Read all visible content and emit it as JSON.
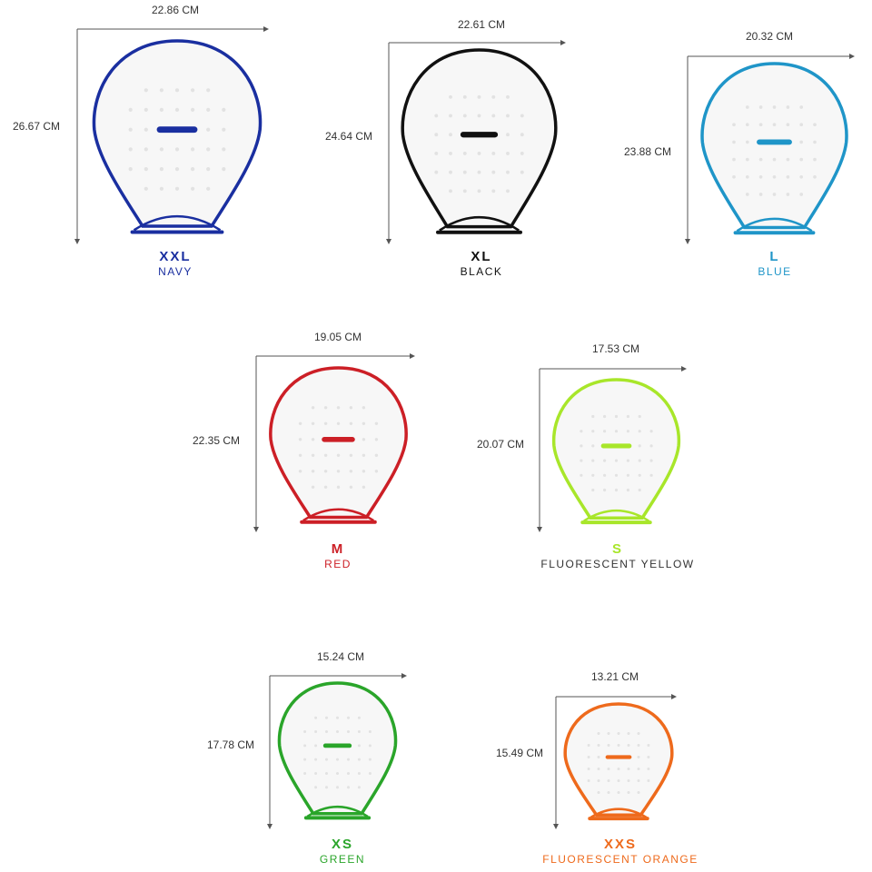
{
  "items": [
    {
      "width": "22.86 CM",
      "height": "26.67 CM",
      "size": "XXL",
      "color_name": "NAVY",
      "color": "#1a2fa0"
    },
    {
      "width": "22.61 CM",
      "height": "24.64 CM",
      "size": "XL",
      "color_name": "BLACK",
      "color": "#111111"
    },
    {
      "width": "20.32 CM",
      "height": "23.88 CM",
      "size": "L",
      "color_name": "BLUE",
      "color": "#1f95c8"
    },
    {
      "width": "19.05 CM",
      "height": "22.35 CM",
      "size": "M",
      "color_name": "RED",
      "color": "#cc1f26"
    },
    {
      "width": "17.53 CM",
      "height": "20.07 CM",
      "size": "S",
      "color_name": "FLUORESCENT YELLOW",
      "color": "#a8e62a"
    },
    {
      "width": "15.24 CM",
      "height": "17.78 CM",
      "size": "XS",
      "color_name": "GREEN",
      "color": "#2aa52a"
    },
    {
      "width": "13.21 CM",
      "height": "15.49 CM",
      "size": "XXS",
      "color_name": "FLUORESCENT ORANGE",
      "color": "#ee6a1c"
    }
  ]
}
